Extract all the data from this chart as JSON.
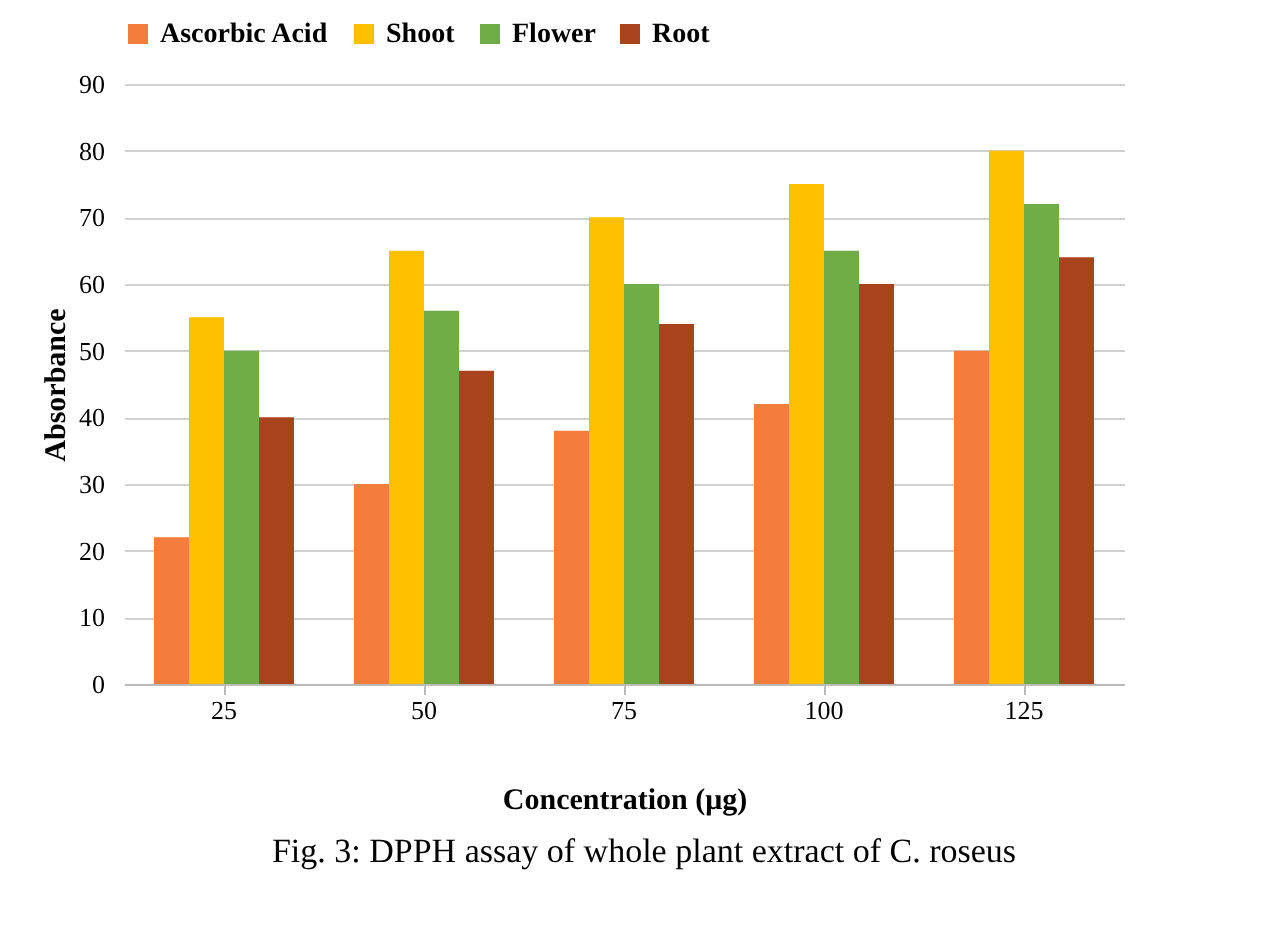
{
  "chart_data": {
    "type": "bar",
    "xlabel": "Concentration (μg)",
    "ylabel": "Absorbance",
    "categories": [
      "25",
      "50",
      "75",
      "100",
      "125"
    ],
    "series": [
      {
        "name": "Ascorbic Acid",
        "color": "#f47c3c",
        "values": [
          22,
          30,
          38,
          42,
          50
        ]
      },
      {
        "name": "Shoot",
        "color": "#ffc000",
        "values": [
          55,
          65,
          70,
          75,
          80
        ]
      },
      {
        "name": "Flower",
        "color": "#70ad47",
        "values": [
          50,
          56,
          60,
          65,
          72
        ]
      },
      {
        "name": "Root",
        "color": "#a9431e",
        "values": [
          40,
          47,
          54,
          60,
          64
        ]
      }
    ],
    "ylim": [
      0,
      90
    ],
    "yticks": [
      0,
      10,
      20,
      30,
      40,
      50,
      60,
      70,
      80,
      90
    ],
    "grid": "y",
    "legend": "top",
    "annotations": [
      "Fig. 3: DPPH assay of whole plant extract of C. roseus"
    ]
  }
}
